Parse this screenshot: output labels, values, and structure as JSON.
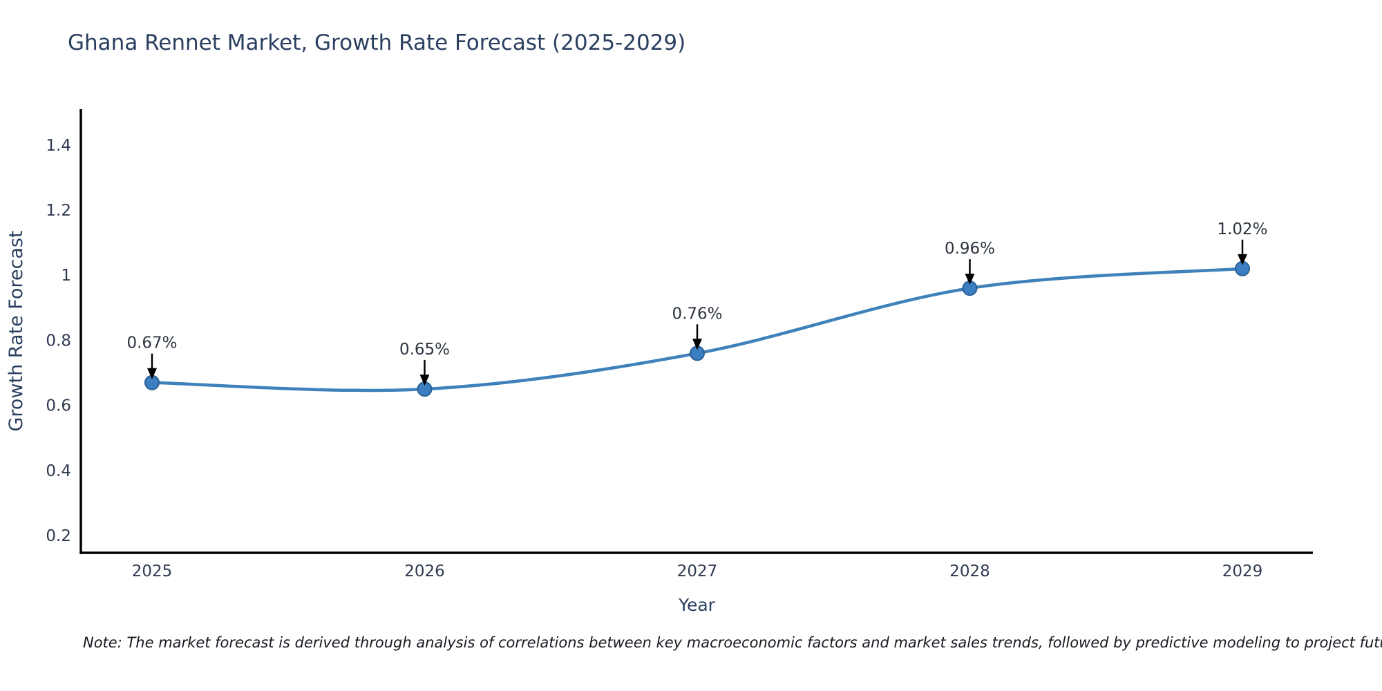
{
  "title": "Ghana Rennet Market, Growth Rate Forecast (2025-2029)",
  "note": "Note: The market forecast is derived through analysis of correlations between key macroeconomic factors and market sales trends, followed by predictive modeling to project future sales",
  "chart_data": {
    "type": "line",
    "title": "Ghana Rennet Market, Growth Rate Forecast (2025-2029)",
    "xlabel": "Year",
    "ylabel": "Growth Rate Forecast",
    "categories": [
      "2025",
      "2026",
      "2027",
      "2028",
      "2029"
    ],
    "series": [
      {
        "name": "Growth Rate Forecast",
        "values": [
          0.67,
          0.65,
          0.76,
          0.96,
          1.02
        ],
        "point_labels": [
          "0.67%",
          "0.65%",
          "0.76%",
          "0.96%",
          "1.02%"
        ]
      }
    ],
    "line_style": "spline",
    "markers": true,
    "annotations_with_arrows": true,
    "yticks": [
      0.2,
      0.4,
      0.6,
      0.8,
      1,
      1.2,
      1.4
    ],
    "ytick_labels": [
      "0.2",
      "0.4",
      "0.6",
      "0.8",
      "1",
      "1.2",
      "1.4"
    ],
    "ylim": [
      0.147,
      1.51
    ],
    "grid": false,
    "legend_position": "none",
    "colors": {
      "line": "#3f81ba",
      "marker_fill": "#3b7fc2",
      "marker_edge": "#2a5f93",
      "axis": "#000000",
      "title_text": "#2a3f5f",
      "tick_text": "#2f3a4f",
      "annotation_text": "#2c3440",
      "arrow": "#000000",
      "note_text": "#16191f",
      "background": "#ffffff"
    }
  }
}
